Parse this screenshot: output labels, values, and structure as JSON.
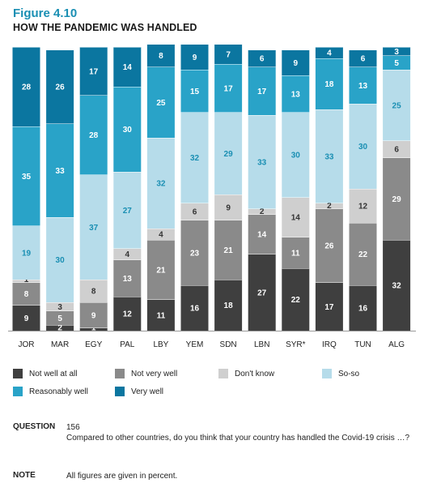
{
  "figure_label": "Figure 4.10",
  "figure_title": "HOW THE PANDEMIC WAS HANDLED",
  "legend": [
    {
      "label": "Not well at all",
      "color": "#3f3f3f"
    },
    {
      "label": "Not very well",
      "color": "#8a8a8a"
    },
    {
      "label": "Don't know",
      "color": "#cfcfcf"
    },
    {
      "label": "So-so",
      "color": "#b6dcea"
    },
    {
      "label": "Reasonably well",
      "color": "#29a3c8"
    },
    {
      "label": "Very well",
      "color": "#0b76a0"
    }
  ],
  "notes": {
    "question_key": "QUESTION",
    "question_number": "156",
    "question_text": "Compared to other countries, do you think that your country has handled the Covid-19 crisis …?",
    "note_key": "NOTE",
    "note_text": "All figures are given in percent."
  },
  "chart_data": {
    "type": "bar",
    "stacked": true,
    "unit": "percent",
    "categories": [
      "JOR",
      "MAR",
      "EGY",
      "PAL",
      "LBY",
      "YEM",
      "SDN",
      "LBN",
      "SYR*",
      "IRQ",
      "TUN",
      "ALG"
    ],
    "series": [
      {
        "name": "Not well at all",
        "color": "#3f3f3f",
        "label_color": "#ffffff",
        "values": [
          9,
          2,
          1,
          12,
          11,
          16,
          18,
          27,
          22,
          17,
          16,
          32
        ]
      },
      {
        "name": "Not very well",
        "color": "#8a8a8a",
        "label_color": "#ffffff",
        "values": [
          8,
          5,
          9,
          13,
          21,
          23,
          21,
          14,
          11,
          26,
          22,
          29
        ]
      },
      {
        "name": "Don't know",
        "color": "#cfcfcf",
        "label_color": "#333333",
        "values": [
          1,
          3,
          8,
          4,
          4,
          6,
          9,
          2,
          14,
          2,
          12,
          6
        ]
      },
      {
        "name": "So-so",
        "color": "#b6dcea",
        "label_color": "#1a8fb3",
        "values": [
          19,
          30,
          37,
          27,
          32,
          32,
          29,
          33,
          30,
          33,
          30,
          25
        ]
      },
      {
        "name": "Reasonably well",
        "color": "#29a3c8",
        "label_color": "#ffffff",
        "values": [
          35,
          33,
          28,
          30,
          25,
          15,
          17,
          17,
          13,
          18,
          13,
          5
        ]
      },
      {
        "name": "Very well",
        "color": "#0b76a0",
        "label_color": "#ffffff",
        "values": [
          28,
          26,
          17,
          14,
          8,
          9,
          7,
          6,
          9,
          4,
          6,
          3
        ]
      }
    ],
    "ylim": [
      0,
      100
    ],
    "grid": false,
    "legend_position": "bottom"
  }
}
